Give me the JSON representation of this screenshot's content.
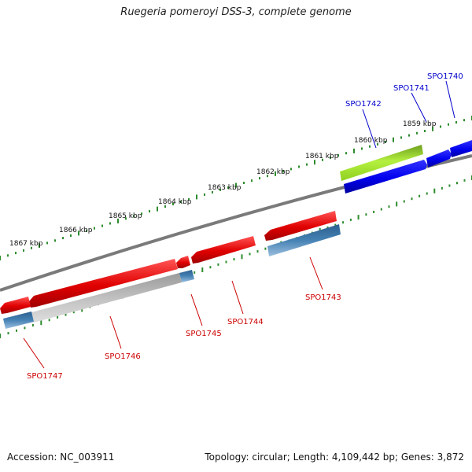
{
  "title": "Ruegeria pomeroyi DSS-3, complete genome",
  "footer": {
    "accession": "Accession: NC_003911",
    "summary": "Topology: circular; Length: 4,109,442 bp; Genes: 3,872"
  },
  "colors": {
    "backbone": "#808080",
    "tick": "#2e8b2e",
    "forward_gene": "#0000ee",
    "forward_label": "#0000cc",
    "highlight_gene": "#9acd32",
    "reverse_gene": "#ee1111",
    "reverse_label": "#cc0000",
    "blue_feature": "#4682b4",
    "gray_feature": "#b8b8b8"
  },
  "ruler": {
    "kbp_labels": [
      "1867 kbp",
      "1866 kbp",
      "1865 kbp",
      "1864 kbp",
      "1863 kbp",
      "1862 kbp",
      "1861 kbp",
      "1860 kbp",
      "1859 kbp"
    ]
  },
  "genes": {
    "forward": [
      {
        "id": "SPO1742",
        "label": "SPO1742"
      },
      {
        "id": "SPO1741",
        "label": "SPO1741"
      },
      {
        "id": "SPO1740",
        "label": "SPO1740"
      }
    ],
    "reverse": [
      {
        "id": "SPO1743",
        "label": "SPO1743"
      },
      {
        "id": "SPO1744",
        "label": "SPO1744"
      },
      {
        "id": "SPO1745",
        "label": "SPO1745"
      },
      {
        "id": "SPO1746",
        "label": "SPO1746"
      },
      {
        "id": "SPO1747",
        "label": "SPO1747"
      }
    ]
  }
}
